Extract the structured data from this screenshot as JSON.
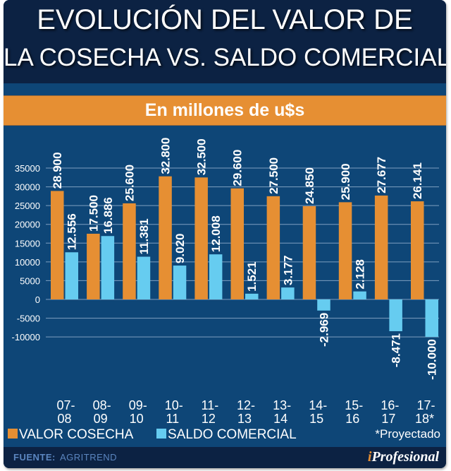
{
  "header": {
    "title_line1": "EVOLUCIÓN DEL VALOR DE",
    "title_line2": "LA COSECHA VS. SALDO COMERCIAL",
    "subtitle": "En millones de u$s"
  },
  "legend": {
    "items": [
      {
        "label": "VALOR COSECHA",
        "color": "#e68f33"
      },
      {
        "label": "SALDO COMERCIAL",
        "color": "#66ccf0"
      }
    ],
    "note": "*Proyectado"
  },
  "footer": {
    "source_label": "FUENTE:",
    "source_value": "AGRITREND",
    "brand_accent": "i",
    "brand_rest": "Profesional"
  },
  "colors": {
    "background": "#0e4677",
    "header": "#0c2243",
    "valor_cosecha": "#e68f33",
    "saldo_comercial": "#66ccf0",
    "grid": "#7f9fc0"
  },
  "chart_data": {
    "type": "bar",
    "title": "EVOLUCIÓN DEL VALOR DE LA COSECHA VS. SALDO COMERCIAL",
    "subtitle": "En millones de u$s",
    "xlabel": "",
    "ylabel": "",
    "categories": [
      [
        "07-",
        "08"
      ],
      [
        "08-",
        "09"
      ],
      [
        "09-",
        "10"
      ],
      [
        "10-",
        "11"
      ],
      [
        "11-",
        "12"
      ],
      [
        "12-",
        "13"
      ],
      [
        "13-",
        "14"
      ],
      [
        "14-",
        "15"
      ],
      [
        "15-",
        "16"
      ],
      [
        "16-",
        "17"
      ],
      [
        "17-",
        "18*"
      ]
    ],
    "series": [
      {
        "name": "VALOR COSECHA",
        "values": [
          28900,
          17500,
          25600,
          32800,
          32500,
          29600,
          27500,
          24850,
          25900,
          27677,
          26141
        ],
        "labels": [
          "28.900",
          "17.500",
          "25.600",
          "32.800",
          "32.500",
          "29.600",
          "27.500",
          "24.850",
          "25.900",
          "27.677",
          "26.141"
        ]
      },
      {
        "name": "SALDO COMERCIAL",
        "values": [
          12556,
          16886,
          11381,
          9020,
          12008,
          1521,
          3177,
          -2969,
          2128,
          -8471,
          -10000
        ],
        "labels": [
          "12.556",
          "16.886",
          "11.381",
          "9.020",
          "12.008",
          "1.521",
          "3.177",
          "-2.969",
          "2.128",
          "-8.471",
          "-10.000"
        ]
      }
    ],
    "yticks": [
      35000,
      30000,
      25000,
      20000,
      15000,
      10000,
      5000,
      0,
      -5000,
      -10000
    ],
    "ylim": [
      -10000,
      35000
    ],
    "grid": true,
    "legend_position": "bottom",
    "note": "*Proyectado"
  }
}
